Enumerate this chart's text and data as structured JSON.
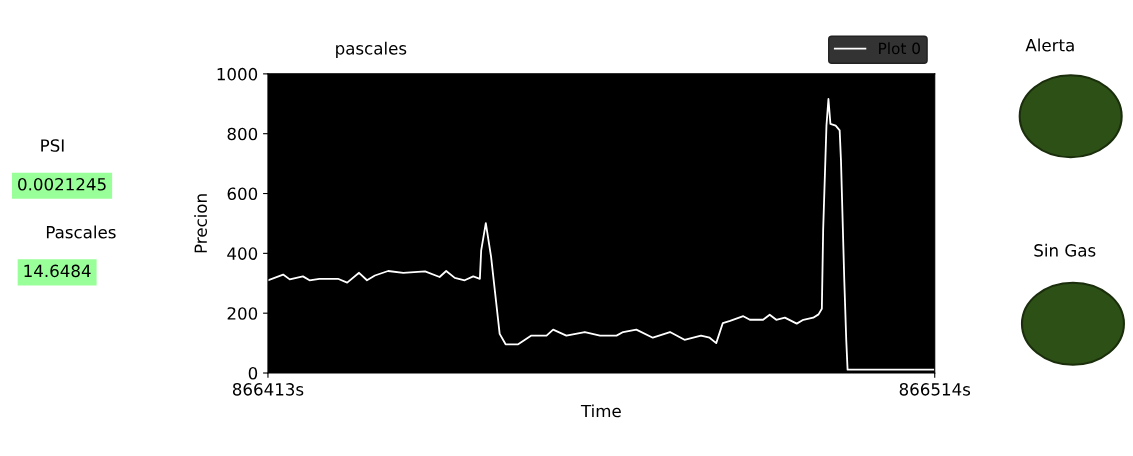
{
  "chart_data": {
    "type": "line",
    "title": "pascales",
    "xlabel": "Time",
    "ylabel": "Precion",
    "xlim": [
      866413,
      866514
    ],
    "xticks": [
      {
        "value": 866413,
        "label": "866413s"
      },
      {
        "value": 866514,
        "label": "866514s"
      }
    ],
    "ylim": [
      0,
      1000
    ],
    "yticks": [
      0,
      200,
      400,
      600,
      800,
      1000
    ],
    "grid": false,
    "legend": "top right",
    "marker": "none",
    "line_style": "solid",
    "series": [
      {
        "name": "Plot 0",
        "color": "#ffffff",
        "x": [
          866413,
          866415.3,
          866416.3,
          866418.3,
          866419.3,
          866420.8,
          866423.6,
          866425,
          866426.8,
          866428,
          866429.2,
          866431.2,
          866433.5,
          866436.8,
          866439,
          866440,
          866441.3,
          866442.8,
          866444.1,
          866445.1,
          866445.3,
          866446,
          866446.8,
          866448.1,
          866449,
          866450.9,
          866452.9,
          866455.2,
          866456.2,
          866458.2,
          866461,
          866463.3,
          866465.8,
          866466.8,
          866468.8,
          866471.3,
          866473.9,
          866476.1,
          866478.6,
          866479.9,
          866480.9,
          866481.9,
          866483,
          866485,
          866486,
          866488,
          866489,
          866490,
          866491.3,
          866493.1,
          866494.1,
          866495.6,
          866496.4,
          866496.9,
          866497.1,
          866497.6,
          866497.9,
          866498.2,
          866499,
          866499.6,
          866499.8,
          866500.3,
          866500.6,
          866500.8,
          866514
        ],
        "values": [
          310,
          329,
          313,
          323,
          310,
          315,
          315,
          302,
          335,
          310,
          326,
          341,
          335,
          340,
          321,
          341,
          318,
          310,
          323,
          315,
          410,
          501,
          388,
          131,
          96,
          96,
          125,
          125,
          145,
          125,
          137,
          125,
          125,
          137,
          145,
          118,
          137,
          111,
          125,
          118,
          100,
          167,
          174,
          190,
          178,
          178,
          195,
          178,
          185,
          165,
          178,
          185,
          196,
          215,
          477,
          827,
          916,
          833,
          827,
          811,
          710,
          310,
          109,
          11,
          11
        ]
      }
    ],
    "annotations": [
      "PSI",
      "0.0021245",
      "Pascales",
      "14.6484",
      "Alerta",
      "Sin Gas"
    ]
  }
}
